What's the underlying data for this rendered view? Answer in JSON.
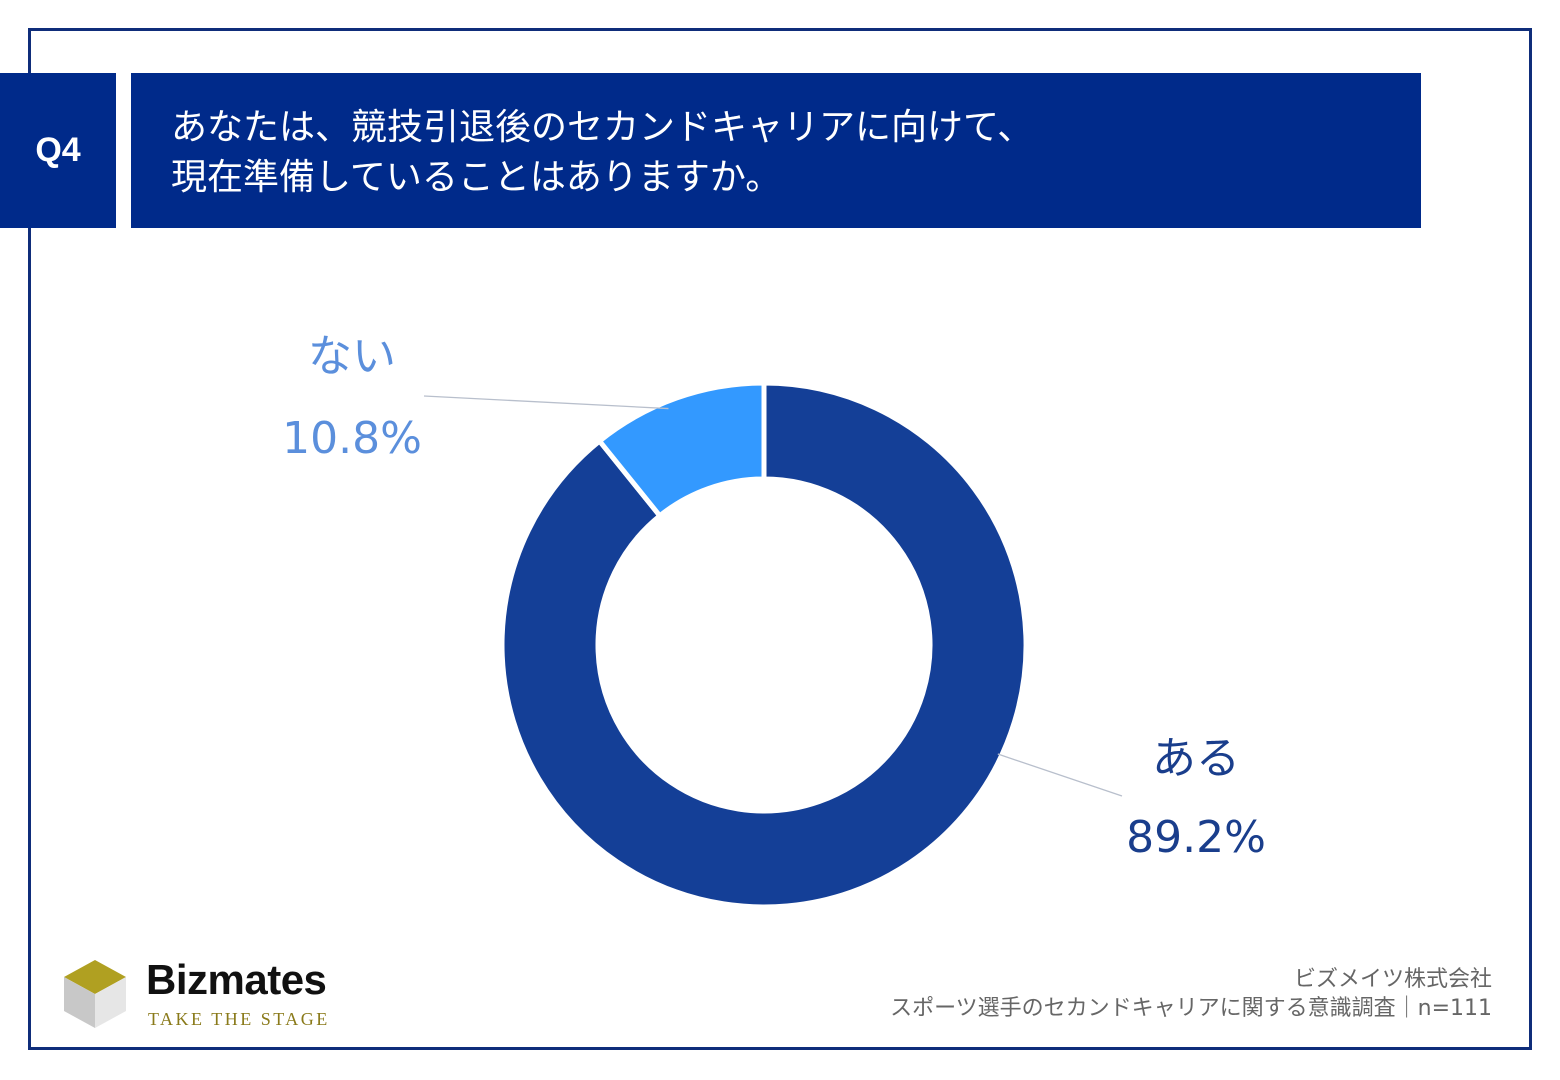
{
  "header": {
    "question_label": "Q4",
    "title_lines": [
      "あなたは、競技引退後のセカンドキャリアに向けて、",
      "現在準備していることはありますか。"
    ]
  },
  "chart_data": {
    "type": "pie",
    "variant": "donut",
    "categories": [
      "ある",
      "ない"
    ],
    "values": [
      89.2,
      10.8
    ],
    "value_labels": [
      "89.2%",
      "10.8%"
    ],
    "colors": [
      "#143f97",
      "#3399ff"
    ],
    "label_colors": [
      "#1a3e8c",
      "#5b8fdc"
    ],
    "leader_color": "#b8bfcc"
  },
  "footer": {
    "logo_name": "Bizmates",
    "logo_tagline": "TAKE THE STAGE",
    "source_lines": [
      "ビズメイツ株式会社",
      "スポーツ選手のセカンドキャリアに関する意識調査｜n=111"
    ]
  }
}
